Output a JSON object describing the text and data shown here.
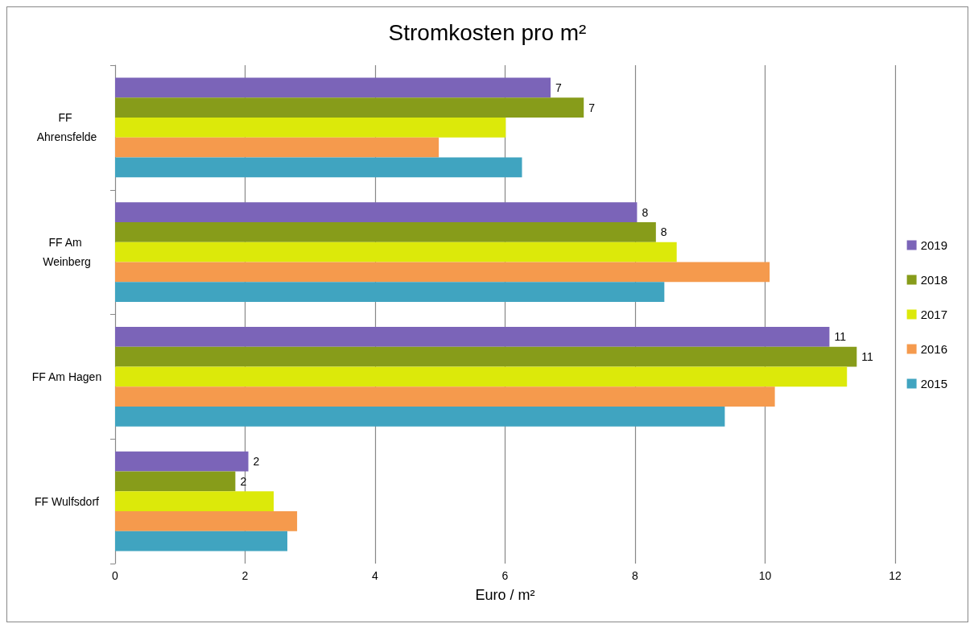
{
  "chart_data": {
    "type": "bar",
    "orientation": "horizontal",
    "title": "Stromkosten pro m²",
    "xlabel": "Euro / m²",
    "categories": [
      "FF Ahrensfelde",
      "FF Am Weinberg",
      "FF Am Hagen",
      "FF Wulfsdorf"
    ],
    "series": [
      {
        "name": "2019",
        "color": "#7b64b8",
        "values": [
          6.7,
          8.03,
          10.99,
          2.05
        ],
        "value_labels": [
          "7",
          "8",
          "11",
          "2"
        ]
      },
      {
        "name": "2018",
        "color": "#879c1a",
        "values": [
          7.21,
          8.32,
          11.41,
          1.85
        ],
        "value_labels": [
          "7",
          "8",
          "11",
          "2"
        ]
      },
      {
        "name": "2017",
        "color": "#dce90a",
        "values": [
          6.01,
          8.64,
          11.26,
          2.44
        ]
      },
      {
        "name": "2016",
        "color": "#f59a4d",
        "values": [
          4.98,
          10.07,
          10.15,
          2.8
        ]
      },
      {
        "name": "2015",
        "color": "#40a4c0",
        "values": [
          6.26,
          8.45,
          9.38,
          2.65
        ]
      }
    ],
    "xlim": [
      0,
      12
    ],
    "xticks": [
      0,
      2,
      4,
      6,
      8,
      10,
      12
    ],
    "grid": "x",
    "legend": "right"
  }
}
